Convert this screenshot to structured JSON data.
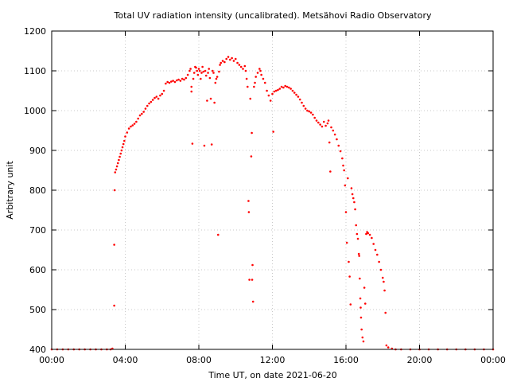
{
  "chart_data": {
    "type": "scatter",
    "title": "Total UV radiation intensity (uncalibrated). Metsähovi Radio Observatory",
    "xlabel": "Time UT, on date 2021-06-20",
    "ylabel": "Arbitrary unit",
    "x_unit": "hours UT",
    "xlim": [
      0,
      24
    ],
    "ylim": [
      400,
      1200
    ],
    "x_ticks": [
      {
        "value": 0,
        "label": "00:00"
      },
      {
        "value": 4,
        "label": "04:00"
      },
      {
        "value": 8,
        "label": "08:00"
      },
      {
        "value": 12,
        "label": "12:00"
      },
      {
        "value": 16,
        "label": "16:00"
      },
      {
        "value": 20,
        "label": "20:00"
      },
      {
        "value": 24,
        "label": "00:00"
      }
    ],
    "y_ticks": [
      {
        "value": 400,
        "label": "400"
      },
      {
        "value": 500,
        "label": "500"
      },
      {
        "value": 600,
        "label": "600"
      },
      {
        "value": 700,
        "label": "700"
      },
      {
        "value": 800,
        "label": "800"
      },
      {
        "value": 900,
        "label": "900"
      },
      {
        "value": 1000,
        "label": "1000"
      },
      {
        "value": 1100,
        "label": "1100"
      },
      {
        "value": 1200,
        "label": "1200"
      }
    ],
    "grid": true,
    "legend": "none",
    "marker_color": "#ff0000",
    "series": [
      {
        "points": [
          [
            0.0,
            400
          ],
          [
            0.3,
            400
          ],
          [
            0.6,
            400
          ],
          [
            0.9,
            400
          ],
          [
            1.2,
            400
          ],
          [
            1.5,
            400
          ],
          [
            1.8,
            400
          ],
          [
            2.1,
            400
          ],
          [
            2.4,
            400
          ],
          [
            2.7,
            400
          ],
          [
            3.0,
            400
          ],
          [
            3.2,
            400
          ],
          [
            3.3,
            402
          ],
          [
            3.4,
            510
          ],
          [
            3.4,
            663
          ],
          [
            3.42,
            800
          ],
          [
            3.45,
            845
          ],
          [
            3.5,
            852
          ],
          [
            3.55,
            860
          ],
          [
            3.6,
            868
          ],
          [
            3.65,
            876
          ],
          [
            3.7,
            884
          ],
          [
            3.75,
            892
          ],
          [
            3.8,
            900
          ],
          [
            3.85,
            908
          ],
          [
            3.9,
            916
          ],
          [
            3.95,
            924
          ],
          [
            4.0,
            935
          ],
          [
            4.1,
            945
          ],
          [
            4.2,
            955
          ],
          [
            4.3,
            960
          ],
          [
            4.4,
            963
          ],
          [
            4.5,
            967
          ],
          [
            4.6,
            972
          ],
          [
            4.7,
            980
          ],
          [
            4.8,
            988
          ],
          [
            4.9,
            992
          ],
          [
            5.0,
            997
          ],
          [
            5.1,
            1005
          ],
          [
            5.2,
            1012
          ],
          [
            5.3,
            1018
          ],
          [
            5.4,
            1022
          ],
          [
            5.5,
            1027
          ],
          [
            5.6,
            1032
          ],
          [
            5.7,
            1035
          ],
          [
            5.8,
            1030
          ],
          [
            5.9,
            1038
          ],
          [
            6.0,
            1042
          ],
          [
            6.1,
            1050
          ],
          [
            6.2,
            1068
          ],
          [
            6.3,
            1072
          ],
          [
            6.4,
            1070
          ],
          [
            6.5,
            1073
          ],
          [
            6.6,
            1075
          ],
          [
            6.7,
            1072
          ],
          [
            6.8,
            1076
          ],
          [
            6.9,
            1078
          ],
          [
            7.0,
            1075
          ],
          [
            7.1,
            1080
          ],
          [
            7.2,
            1078
          ],
          [
            7.3,
            1082
          ],
          [
            7.4,
            1090
          ],
          [
            7.5,
            1100
          ],
          [
            7.55,
            1105
          ],
          [
            7.6,
            1060
          ],
          [
            7.6,
            1048
          ],
          [
            7.65,
            917
          ],
          [
            7.7,
            1080
          ],
          [
            7.75,
            1095
          ],
          [
            7.8,
            1110
          ],
          [
            7.85,
            1108
          ],
          [
            7.9,
            1100
          ],
          [
            7.95,
            1090
          ],
          [
            8.0,
            1105
          ],
          [
            8.05,
            1100
          ],
          [
            8.1,
            1080
          ],
          [
            8.15,
            1095
          ],
          [
            8.2,
            1110
          ],
          [
            8.25,
            1098
          ],
          [
            8.3,
            912
          ],
          [
            8.35,
            1100
          ],
          [
            8.4,
            1088
          ],
          [
            8.45,
            1025
          ],
          [
            8.5,
            1095
          ],
          [
            8.55,
            1105
          ],
          [
            8.6,
            1082
          ],
          [
            8.65,
            1030
          ],
          [
            8.7,
            915
          ],
          [
            8.75,
            1100
          ],
          [
            8.8,
            1095
          ],
          [
            8.85,
            1020
          ],
          [
            8.9,
            1070
          ],
          [
            8.95,
            1080
          ],
          [
            9.0,
            1085
          ],
          [
            9.05,
            688
          ],
          [
            9.1,
            1098
          ],
          [
            9.15,
            1115
          ],
          [
            9.2,
            1120
          ],
          [
            9.3,
            1125
          ],
          [
            9.4,
            1122
          ],
          [
            9.5,
            1130
          ],
          [
            9.6,
            1135
          ],
          [
            9.7,
            1128
          ],
          [
            9.8,
            1132
          ],
          [
            9.9,
            1125
          ],
          [
            10.0,
            1130
          ],
          [
            10.1,
            1120
          ],
          [
            10.2,
            1115
          ],
          [
            10.3,
            1110
          ],
          [
            10.4,
            1105
          ],
          [
            10.5,
            1112
          ],
          [
            10.55,
            1100
          ],
          [
            10.6,
            1080
          ],
          [
            10.65,
            1060
          ],
          [
            10.7,
            773
          ],
          [
            10.72,
            745
          ],
          [
            10.75,
            575
          ],
          [
            10.8,
            1030
          ],
          [
            10.85,
            885
          ],
          [
            10.88,
            944
          ],
          [
            10.9,
            575
          ],
          [
            10.92,
            612
          ],
          [
            10.95,
            520
          ],
          [
            11.0,
            1060
          ],
          [
            11.05,
            1070
          ],
          [
            11.1,
            1085
          ],
          [
            11.2,
            1095
          ],
          [
            11.3,
            1105
          ],
          [
            11.35,
            1100
          ],
          [
            11.4,
            1090
          ],
          [
            11.5,
            1080
          ],
          [
            11.6,
            1070
          ],
          [
            11.7,
            1050
          ],
          [
            11.8,
            1038
          ],
          [
            11.9,
            1025
          ],
          [
            12.0,
            1042
          ],
          [
            12.05,
            947
          ],
          [
            12.1,
            1048
          ],
          [
            12.2,
            1050
          ],
          [
            12.3,
            1052
          ],
          [
            12.4,
            1055
          ],
          [
            12.5,
            1060
          ],
          [
            12.6,
            1058
          ],
          [
            12.7,
            1062
          ],
          [
            12.8,
            1060
          ],
          [
            12.9,
            1058
          ],
          [
            13.0,
            1055
          ],
          [
            13.1,
            1050
          ],
          [
            13.2,
            1045
          ],
          [
            13.3,
            1040
          ],
          [
            13.4,
            1035
          ],
          [
            13.5,
            1028
          ],
          [
            13.6,
            1020
          ],
          [
            13.7,
            1012
          ],
          [
            13.8,
            1005
          ],
          [
            13.9,
            1000
          ],
          [
            14.0,
            998
          ],
          [
            14.1,
            995
          ],
          [
            14.2,
            990
          ],
          [
            14.3,
            982
          ],
          [
            14.4,
            975
          ],
          [
            14.5,
            970
          ],
          [
            14.6,
            965
          ],
          [
            14.7,
            960
          ],
          [
            14.8,
            972
          ],
          [
            14.9,
            962
          ],
          [
            15.0,
            968
          ],
          [
            15.05,
            975
          ],
          [
            15.1,
            920
          ],
          [
            15.15,
            847
          ],
          [
            15.2,
            958
          ],
          [
            15.3,
            950
          ],
          [
            15.4,
            940
          ],
          [
            15.5,
            928
          ],
          [
            15.6,
            912
          ],
          [
            15.7,
            898
          ],
          [
            15.8,
            880
          ],
          [
            15.85,
            862
          ],
          [
            15.9,
            850
          ],
          [
            15.95,
            812
          ],
          [
            16.0,
            745
          ],
          [
            16.05,
            668
          ],
          [
            16.1,
            830
          ],
          [
            16.15,
            620
          ],
          [
            16.2,
            583
          ],
          [
            16.25,
            513
          ],
          [
            16.3,
            805
          ],
          [
            16.35,
            790
          ],
          [
            16.4,
            780
          ],
          [
            16.45,
            770
          ],
          [
            16.5,
            752
          ],
          [
            16.55,
            712
          ],
          [
            16.6,
            690
          ],
          [
            16.65,
            678
          ],
          [
            16.7,
            640
          ],
          [
            16.72,
            635
          ],
          [
            16.75,
            578
          ],
          [
            16.78,
            528
          ],
          [
            16.8,
            505
          ],
          [
            16.82,
            480
          ],
          [
            16.85,
            450
          ],
          [
            16.9,
            430
          ],
          [
            16.95,
            420
          ],
          [
            17.0,
            555
          ],
          [
            17.05,
            515
          ],
          [
            17.1,
            690
          ],
          [
            17.15,
            695
          ],
          [
            17.2,
            692
          ],
          [
            17.3,
            688
          ],
          [
            17.4,
            680
          ],
          [
            17.5,
            665
          ],
          [
            17.6,
            650
          ],
          [
            17.7,
            638
          ],
          [
            17.8,
            620
          ],
          [
            17.9,
            600
          ],
          [
            18.0,
            580
          ],
          [
            18.05,
            570
          ],
          [
            18.1,
            548
          ],
          [
            18.15,
            492
          ],
          [
            18.2,
            410
          ],
          [
            18.3,
            405
          ],
          [
            18.5,
            402
          ],
          [
            18.7,
            400
          ],
          [
            19.0,
            400
          ],
          [
            19.5,
            400
          ],
          [
            20.0,
            400
          ],
          [
            20.5,
            400
          ],
          [
            21.0,
            400
          ],
          [
            21.5,
            400
          ],
          [
            22.0,
            400
          ],
          [
            22.5,
            400
          ],
          [
            23.0,
            400
          ],
          [
            23.5,
            400
          ],
          [
            24.0,
            400
          ]
        ]
      }
    ]
  }
}
